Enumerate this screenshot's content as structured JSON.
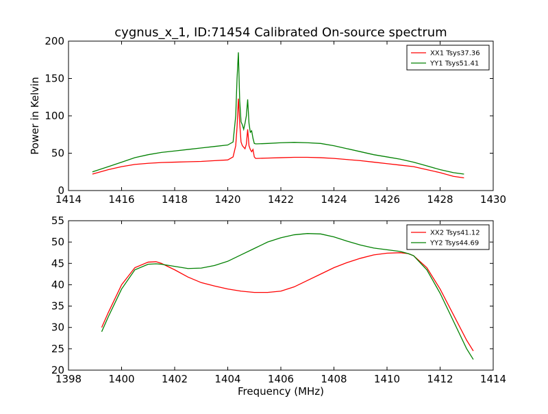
{
  "title": "cygnus_x_1, ID:71454 Calibrated On-source spectrum",
  "colors": {
    "xx": "#ff0000",
    "yy": "#008000"
  },
  "chart_data": [
    {
      "type": "line",
      "title": "cygnus_x_1, ID:71454 Calibrated On-source spectrum",
      "xlabel": "",
      "ylabel": "Power in Kelvin",
      "xlim": [
        1414,
        1430
      ],
      "ylim": [
        0,
        200
      ],
      "xticks": [
        1414,
        1416,
        1418,
        1420,
        1422,
        1424,
        1426,
        1428,
        1430
      ],
      "yticks": [
        0,
        50,
        100,
        150,
        200
      ],
      "legend_position": "top-right",
      "grid": false,
      "series": [
        {
          "name": "XX1 Tsys37.36",
          "color": "#ff0000",
          "x": [
            1414.9,
            1415.5,
            1416.0,
            1416.5,
            1417.0,
            1417.5,
            1418.0,
            1418.5,
            1419.0,
            1419.5,
            1420.0,
            1420.2,
            1420.3,
            1420.35,
            1420.4,
            1420.45,
            1420.5,
            1420.55,
            1420.6,
            1420.65,
            1420.7,
            1420.75,
            1420.8,
            1420.85,
            1420.9,
            1420.95,
            1421.0,
            1421.05,
            1421.1,
            1421.5,
            1422.0,
            1422.5,
            1423.0,
            1423.5,
            1424.0,
            1424.5,
            1425.0,
            1425.5,
            1426.0,
            1426.5,
            1427.0,
            1427.5,
            1428.0,
            1428.5,
            1428.9
          ],
          "y": [
            22,
            28,
            32,
            35,
            36.5,
            37.5,
            38,
            38.5,
            39,
            40,
            41,
            45,
            60,
            85,
            123,
            90,
            65,
            60,
            58,
            56,
            62,
            82,
            60,
            55,
            52,
            55,
            45,
            43,
            43,
            43.5,
            44,
            44.5,
            44.5,
            44,
            43,
            41.5,
            40,
            38,
            36,
            34,
            32,
            28,
            24,
            19,
            17
          ]
        },
        {
          "name": "YY1 Tsys51.41",
          "color": "#008000",
          "x": [
            1414.9,
            1415.5,
            1416.0,
            1416.5,
            1417.0,
            1417.5,
            1418.0,
            1418.5,
            1419.0,
            1419.5,
            1420.0,
            1420.2,
            1420.3,
            1420.35,
            1420.4,
            1420.45,
            1420.5,
            1420.55,
            1420.6,
            1420.65,
            1420.7,
            1420.75,
            1420.8,
            1420.85,
            1420.9,
            1420.95,
            1421.0,
            1421.05,
            1421.1,
            1421.5,
            1422.0,
            1422.5,
            1423.0,
            1423.5,
            1424.0,
            1424.5,
            1425.0,
            1425.5,
            1426.0,
            1426.5,
            1427.0,
            1427.5,
            1428.0,
            1428.5,
            1428.9
          ],
          "y": [
            25,
            32,
            38,
            44,
            48,
            51,
            53,
            55,
            57,
            59,
            61,
            65,
            100,
            150,
            185,
            120,
            92,
            88,
            82,
            90,
            100,
            122,
            90,
            78,
            80,
            70,
            63,
            62.5,
            62.5,
            63,
            64,
            64.5,
            64,
            63,
            60,
            56,
            52,
            48,
            45,
            42,
            38,
            33,
            28,
            24,
            22
          ]
        }
      ]
    },
    {
      "type": "line",
      "title": "",
      "xlabel": "Frequency (MHz)",
      "ylabel": "",
      "xlim": [
        1398,
        1414
      ],
      "ylim": [
        20,
        55
      ],
      "xticks": [
        1398,
        1400,
        1402,
        1404,
        1406,
        1408,
        1410,
        1412,
        1414
      ],
      "yticks": [
        20,
        25,
        30,
        35,
        40,
        45,
        50,
        55
      ],
      "legend_position": "top-right",
      "grid": false,
      "series": [
        {
          "name": "XX2 Tsys41.12",
          "color": "#ff0000",
          "x": [
            1399.25,
            1399.5,
            1400.0,
            1400.5,
            1401.0,
            1401.3,
            1401.5,
            1402.0,
            1402.5,
            1403.0,
            1403.5,
            1404.0,
            1404.5,
            1405.0,
            1405.5,
            1406.0,
            1406.5,
            1407.0,
            1407.5,
            1408.0,
            1408.5,
            1409.0,
            1409.5,
            1410.0,
            1410.5,
            1410.8,
            1411.0,
            1411.5,
            1412.0,
            1412.5,
            1413.0,
            1413.25
          ],
          "y": [
            30,
            33.5,
            40,
            44,
            45.3,
            45.4,
            45,
            43.5,
            41.8,
            40.5,
            39.7,
            39,
            38.5,
            38.2,
            38.2,
            38.5,
            39.5,
            41,
            42.5,
            44,
            45.2,
            46.2,
            47,
            47.4,
            47.5,
            47.3,
            46.8,
            44,
            39,
            33,
            27,
            24.5
          ]
        },
        {
          "name": "YY2 Tsys44.69",
          "color": "#008000",
          "x": [
            1399.25,
            1399.5,
            1400.0,
            1400.5,
            1401.0,
            1401.3,
            1401.5,
            1402.0,
            1402.5,
            1403.0,
            1403.5,
            1404.0,
            1404.5,
            1405.0,
            1405.5,
            1406.0,
            1406.5,
            1407.0,
            1407.5,
            1408.0,
            1408.5,
            1409.0,
            1409.5,
            1410.0,
            1410.5,
            1410.8,
            1411.0,
            1411.5,
            1412.0,
            1412.5,
            1413.0,
            1413.25
          ],
          "y": [
            29,
            32.5,
            39,
            43.5,
            44.8,
            44.9,
            44.8,
            44.3,
            43.8,
            43.9,
            44.5,
            45.5,
            47,
            48.5,
            50,
            51,
            51.7,
            52,
            51.9,
            51.2,
            50.2,
            49.3,
            48.6,
            48.2,
            47.8,
            47.3,
            46.8,
            43.5,
            38,
            31.5,
            25,
            22.5
          ]
        }
      ]
    }
  ]
}
